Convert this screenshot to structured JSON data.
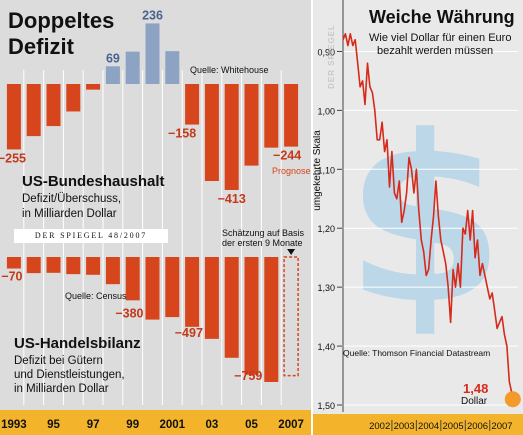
{
  "chart_data": [
    {
      "type": "bar",
      "title": "Doppeltes Defizit",
      "categories": [
        "1993",
        "1994",
        "1995",
        "1996",
        "1997",
        "1998",
        "1999",
        "2000",
        "2001",
        "2002",
        "2003",
        "2004",
        "2005",
        "2006",
        "2007"
      ],
      "x_tick_labels": [
        "1993",
        "95",
        "97",
        "99",
        "2001",
        "03",
        "05",
        "2007"
      ],
      "x_tick_categories": [
        "1993",
        "1995",
        "1997",
        "1999",
        "2001",
        "2003",
        "2005",
        "2007"
      ],
      "panels": [
        {
          "title": "US-Bundeshaushalt",
          "subtitle": "Defizit/Überschuss, in Milliarden Dollar",
          "source": "Quelle: Whitehouse",
          "values": [
            -255,
            -203,
            -164,
            -107,
            -22,
            69,
            126,
            236,
            128,
            -158,
            -378,
            -413,
            -318,
            -248,
            -244
          ],
          "ylim": [
            -413,
            236
          ],
          "data_labels": [
            {
              "category": "1993",
              "text": "−255"
            },
            {
              "category": "1998",
              "text": "69"
            },
            {
              "category": "2000",
              "text": "236"
            },
            {
              "category": "2002",
              "text": "−158"
            },
            {
              "category": "2004",
              "text": "−413"
            },
            {
              "category": "2007",
              "text": "−244"
            }
          ],
          "annotation": "Prognose",
          "estimated_category": "2007",
          "colors": {
            "deficit": "#d6451b",
            "surplus": "#8da3c4"
          }
        },
        {
          "title": "US-Handelsbilanz",
          "subtitle": "Defizit bei Gütern und Dienstleistungen, in Milliarden Dollar",
          "source": "Quelle: Census",
          "values": [
            -70,
            -98,
            -96,
            -104,
            -108,
            -165,
            -263,
            -380,
            -365,
            -424,
            -497,
            -612,
            -715,
            -759,
            -720
          ],
          "ylim": [
            -759,
            0
          ],
          "data_labels": [
            {
              "category": "1993",
              "text": "−70"
            },
            {
              "category": "2000",
              "text": "−380"
            },
            {
              "category": "2003",
              "text": "−497"
            },
            {
              "category": "2006",
              "text": "−759"
            }
          ],
          "annotation": "Schätzung auf Basis der ersten 9 Monate",
          "estimated_category": "2007",
          "colors": {
            "deficit": "#d6451b"
          }
        }
      ]
    },
    {
      "type": "line",
      "title": "Weiche Währung",
      "subtitle": "Wie viel Dollar für einen Euro bezahlt werden müssen",
      "ylabel": "umgekehrte Skala",
      "y_inverted": true,
      "ylim": [
        0.85,
        1.5
      ],
      "yticks": [
        "0,90",
        "1,00",
        "1,10",
        "1,20",
        "1,30",
        "1,40",
        "1,50"
      ],
      "x_tick_labels": [
        "2002",
        "2003",
        "2004",
        "2005",
        "2006",
        "2007"
      ],
      "x": [
        2001.0,
        2001.1,
        2001.2,
        2001.3,
        2001.4,
        2001.5,
        2001.6,
        2001.7,
        2001.8,
        2001.9,
        2002.0,
        2002.1,
        2002.2,
        2002.3,
        2002.4,
        2002.5,
        2002.6,
        2002.7,
        2002.8,
        2002.9,
        2003.0,
        2003.1,
        2003.2,
        2003.3,
        2003.4,
        2003.5,
        2003.6,
        2003.7,
        2003.8,
        2003.9,
        2004.0,
        2004.1,
        2004.2,
        2004.3,
        2004.4,
        2004.5,
        2004.6,
        2004.7,
        2004.8,
        2004.9,
        2005.0,
        2005.1,
        2005.2,
        2005.3,
        2005.4,
        2005.5,
        2005.6,
        2005.7,
        2005.8,
        2005.9,
        2006.0,
        2006.1,
        2006.2,
        2006.3,
        2006.4,
        2006.5,
        2006.6,
        2006.7,
        2006.8,
        2006.9,
        2007.0,
        2007.1,
        2007.2,
        2007.3,
        2007.4,
        2007.5,
        2007.6,
        2007.7,
        2007.8,
        2007.9
      ],
      "y": [
        0.88,
        0.87,
        0.89,
        0.87,
        0.89,
        0.88,
        0.92,
        0.96,
        0.95,
        0.99,
        0.92,
        0.96,
        0.97,
        1.0,
        1.05,
        1.05,
        1.02,
        1.07,
        1.05,
        1.13,
        1.07,
        1.14,
        1.15,
        1.12,
        1.19,
        1.17,
        1.14,
        1.08,
        1.1,
        1.14,
        1.1,
        1.17,
        1.22,
        1.24,
        1.28,
        1.27,
        1.22,
        1.18,
        1.12,
        1.18,
        1.22,
        1.24,
        1.26,
        1.3,
        1.36,
        1.27,
        1.3,
        1.26,
        1.3,
        1.2,
        1.21,
        1.17,
        1.22,
        1.17,
        1.25,
        1.22,
        1.28,
        1.26,
        1.28,
        1.3,
        1.32,
        1.31,
        1.34,
        1.37,
        1.36,
        1.35,
        1.38,
        1.4,
        1.46,
        1.48
      ],
      "source": "Quelle: Thomson Financial Datastream",
      "end_label": {
        "value": "1,48",
        "unit": "Dollar"
      },
      "colors": {
        "line": "#d62a1a",
        "dot": "#f39a2b",
        "tick_band": "#f3b42b",
        "watermark": "#bcd7e8"
      }
    }
  ],
  "left": {
    "title_line1": "Doppeltes",
    "title_line2": "Defizit",
    "budget": {
      "title": "US-Bundeshaushalt",
      "sub1": "Defizit/Überschuss,",
      "sub2": "in Milliarden Dollar",
      "source": "Quelle: Whitehouse",
      "prognose": "Prognose"
    },
    "trade": {
      "title": "US-Handelsbilanz",
      "sub1": "Defizit bei Gütern",
      "sub2": "und Dienstleistungen,",
      "sub3": "in Milliarden Dollar",
      "source": "Quelle: Census",
      "estimate1": "Schätzung auf Basis",
      "estimate2": "der ersten 9 Monate"
    },
    "spiegel_credit": "DER SPIEGEL 48/2007"
  },
  "right": {
    "title": "Weiche Währung",
    "sub1": "Wie viel Dollar für einen Euro",
    "sub2": "bezahlt werden müssen",
    "vertical_label": "umgekehrte Skala",
    "watermark_text": "DER SPIEGEL",
    "source": "Quelle: Thomson Financial Datastream",
    "end_value": "1,48",
    "end_unit": "Dollar"
  }
}
